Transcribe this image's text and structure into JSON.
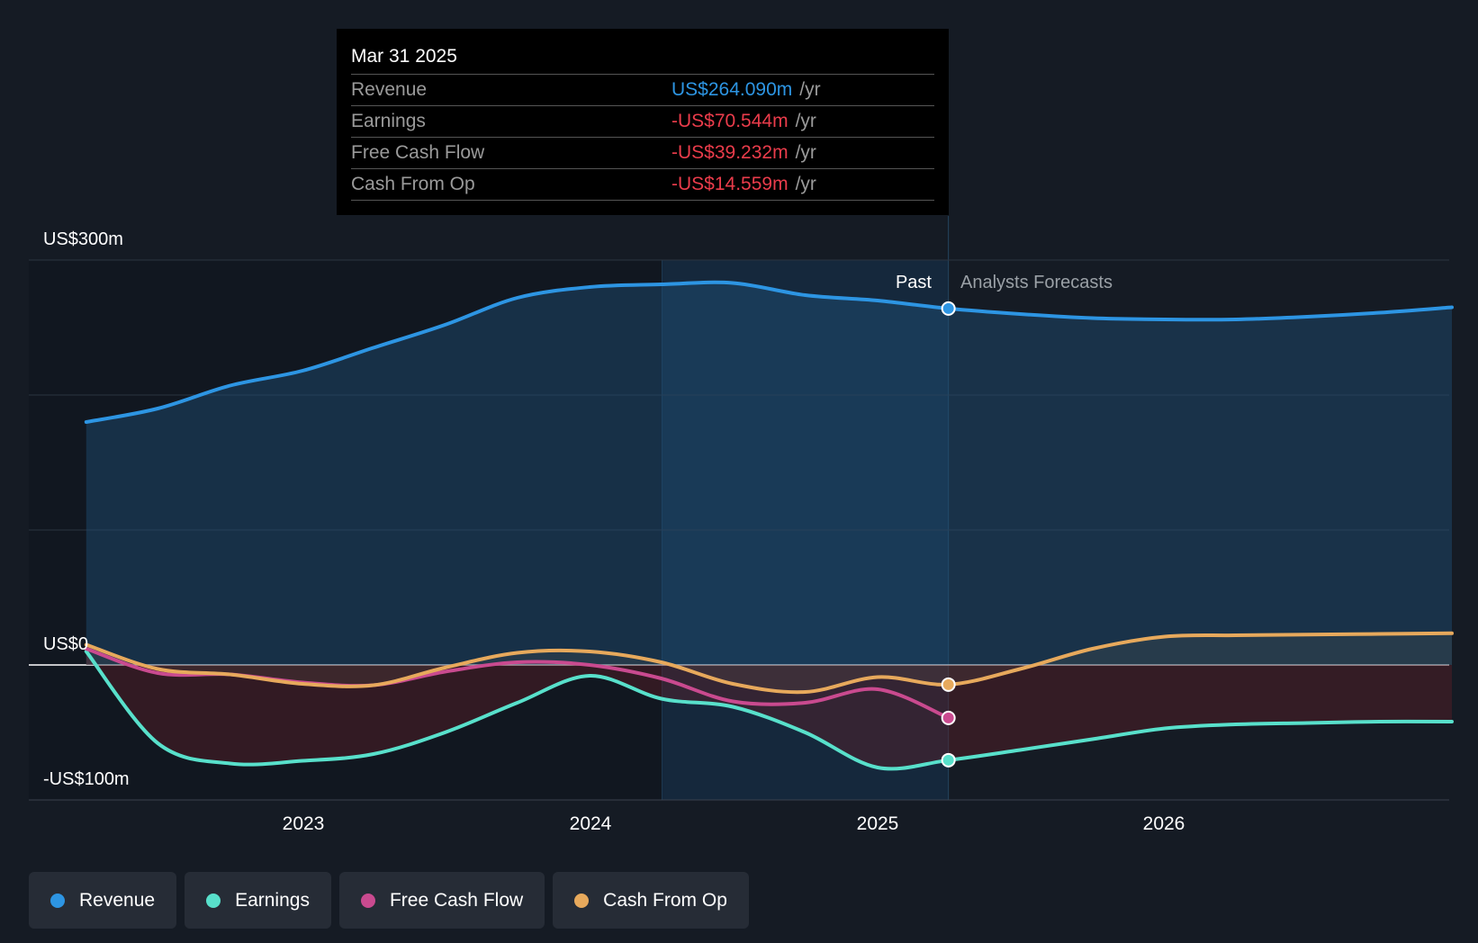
{
  "chart_data": {
    "type": "line",
    "y_axis": {
      "labels": [
        "US$300m",
        "US$0",
        "-US$100m"
      ],
      "ylim": [
        -100,
        300
      ],
      "unit": "US$m"
    },
    "x_axis": {
      "ticks": [
        "2023",
        "2024",
        "2025",
        "2026"
      ]
    },
    "past_label": "Past",
    "forecast_label": "Analysts Forecasts",
    "series": [
      {
        "name": "Revenue",
        "color": "#2d95e3",
        "points": [
          [
            "2022-03-31",
            180
          ],
          [
            "2022-06-30",
            190
          ],
          [
            "2022-09-30",
            207
          ],
          [
            "2022-12-31",
            218
          ],
          [
            "2023-03-31",
            235
          ],
          [
            "2023-06-30",
            252
          ],
          [
            "2023-09-30",
            272
          ],
          [
            "2023-12-31",
            280
          ],
          [
            "2024-03-31",
            282
          ],
          [
            "2024-06-30",
            283
          ],
          [
            "2024-09-30",
            274
          ],
          [
            "2024-12-31",
            270
          ],
          [
            "2025-03-31",
            264.09
          ],
          [
            "2025-06-30",
            260
          ],
          [
            "2025-09-30",
            257
          ],
          [
            "2025-12-31",
            256
          ],
          [
            "2026-03-31",
            256
          ],
          [
            "2026-06-30",
            258
          ],
          [
            "2026-09-30",
            261
          ],
          [
            "2026-12-31",
            265
          ]
        ]
      },
      {
        "name": "Earnings",
        "color": "#58e0cb",
        "points": [
          [
            "2022-03-31",
            10
          ],
          [
            "2022-06-30",
            -58
          ],
          [
            "2022-09-30",
            -73
          ],
          [
            "2022-12-31",
            -71
          ],
          [
            "2023-03-31",
            -66
          ],
          [
            "2023-06-30",
            -50
          ],
          [
            "2023-09-30",
            -28
          ],
          [
            "2023-12-31",
            -8
          ],
          [
            "2024-03-31",
            -25
          ],
          [
            "2024-06-30",
            -31
          ],
          [
            "2024-09-30",
            -50
          ],
          [
            "2024-12-31",
            -76
          ],
          [
            "2025-03-31",
            -70.544
          ],
          [
            "2025-06-30",
            -63
          ],
          [
            "2025-09-30",
            -55
          ],
          [
            "2025-12-31",
            -47
          ],
          [
            "2026-03-31",
            -44
          ],
          [
            "2026-06-30",
            -43
          ],
          [
            "2026-09-30",
            -42
          ],
          [
            "2026-12-31",
            -42
          ]
        ]
      },
      {
        "name": "Free Cash Flow",
        "color": "#c94a8f",
        "points": [
          [
            "2022-03-31",
            12
          ],
          [
            "2022-06-30",
            -6
          ],
          [
            "2022-09-30",
            -7
          ],
          [
            "2022-12-31",
            -13
          ],
          [
            "2023-03-31",
            -15
          ],
          [
            "2023-06-30",
            -5
          ],
          [
            "2023-09-30",
            2
          ],
          [
            "2023-12-31",
            0
          ],
          [
            "2024-03-31",
            -10
          ],
          [
            "2024-06-30",
            -27
          ],
          [
            "2024-09-30",
            -28
          ],
          [
            "2024-12-31",
            -18
          ],
          [
            "2025-03-31",
            -39.232
          ]
        ]
      },
      {
        "name": "Cash From Op",
        "color": "#e7a95c",
        "points": [
          [
            "2022-03-31",
            15
          ],
          [
            "2022-06-30",
            -3
          ],
          [
            "2022-09-30",
            -7
          ],
          [
            "2022-12-31",
            -14
          ],
          [
            "2023-03-31",
            -15
          ],
          [
            "2023-06-30",
            -2
          ],
          [
            "2023-09-30",
            9
          ],
          [
            "2023-12-31",
            10
          ],
          [
            "2024-03-31",
            2
          ],
          [
            "2024-06-30",
            -14
          ],
          [
            "2024-09-30",
            -20
          ],
          [
            "2024-12-31",
            -9
          ],
          [
            "2025-03-31",
            -14.559
          ],
          [
            "2025-06-30",
            -3
          ],
          [
            "2025-09-30",
            12
          ],
          [
            "2025-12-31",
            21
          ],
          [
            "2026-03-31",
            22
          ],
          [
            "2026-06-30",
            22.5
          ],
          [
            "2026-09-30",
            23
          ],
          [
            "2026-12-31",
            23.5
          ]
        ]
      }
    ],
    "tooltip": {
      "date": "Mar 31 2025",
      "rows": [
        {
          "label": "Revenue",
          "value": "US$264.090m",
          "unit": "/yr",
          "color": "#2d95e3"
        },
        {
          "label": "Earnings",
          "value": "-US$70.544m",
          "unit": "/yr",
          "color": "#ea3c4b"
        },
        {
          "label": "Free Cash Flow",
          "value": "-US$39.232m",
          "unit": "/yr",
          "color": "#ea3c4b"
        },
        {
          "label": "Cash From Op",
          "value": "-US$14.559m",
          "unit": "/yr",
          "color": "#ea3c4b"
        }
      ]
    },
    "legend": [
      {
        "label": "Revenue",
        "color": "#2d95e3"
      },
      {
        "label": "Earnings",
        "color": "#58e0cb"
      },
      {
        "label": "Free Cash Flow",
        "color": "#c94a8f"
      },
      {
        "label": "Cash From Op",
        "color": "#e7a95c"
      }
    ],
    "grid": true,
    "legend_placement": "bottom-left"
  }
}
